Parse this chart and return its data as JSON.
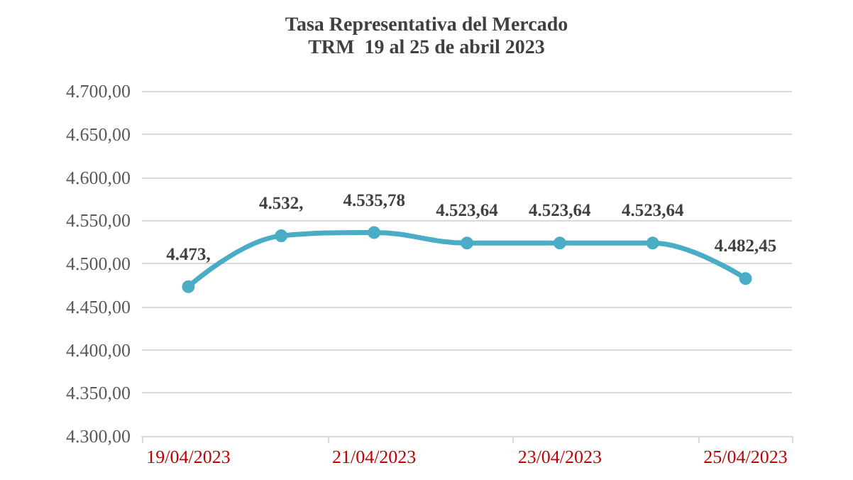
{
  "chart_data": {
    "type": "line",
    "title": "Tasa Representativa del Mercado",
    "subtitle": "TRM  19 al 25 de abril 2023",
    "categories": [
      "19/04/2023",
      null,
      "21/04/2023",
      null,
      "23/04/2023",
      null,
      "25/04/2023"
    ],
    "series": [
      {
        "color": "#4bacc6",
        "values": [
          4473,
          4532,
          4535.78,
          4523.64,
          4523.64,
          4523.64,
          4482.45
        ],
        "value_labels": [
          "4.473,",
          "4.532,",
          "4.535,78",
          "4.523,64",
          "4.523,64",
          "4.523,64",
          "4.482,45"
        ]
      }
    ],
    "ylim": [
      4300,
      4700
    ],
    "yticks": [
      {
        "value": 4300,
        "label": "4.300,00"
      },
      {
        "value": 4350,
        "label": "4.350,00"
      },
      {
        "value": 4400,
        "label": "4.400,00"
      },
      {
        "value": 4450,
        "label": "4.450,00"
      },
      {
        "value": 4500,
        "label": "4.500,00"
      },
      {
        "value": 4550,
        "label": "4.550,00"
      },
      {
        "value": 4600,
        "label": "4.600,00"
      },
      {
        "value": 4650,
        "label": "4.650,00"
      },
      {
        "value": 4700,
        "label": "4.700,00"
      }
    ],
    "grid": "y",
    "marker": "circle",
    "line_style": "solid"
  }
}
